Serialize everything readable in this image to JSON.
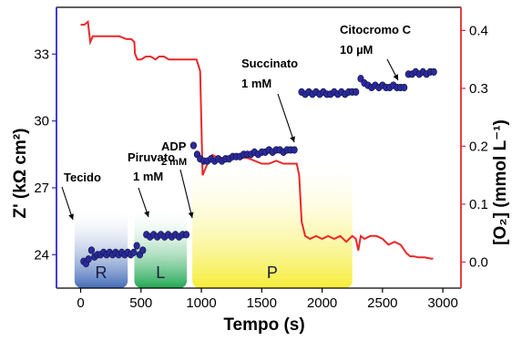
{
  "chart_data": {
    "type": "line",
    "xlabel": "Tempo (s)",
    "ylabel_left": "Z' (kΩ cm²)",
    "ylabel_right": "[O₂] (mmol L⁻¹)",
    "xlim": [
      -200,
      3150
    ],
    "ylim_left": [
      22.5,
      35.1
    ],
    "ylim_right": [
      -0.045,
      0.44
    ],
    "x_ticks": [
      0,
      500,
      1000,
      1500,
      2000,
      2500,
      3000
    ],
    "y_left_ticks": [
      24,
      27,
      30,
      33
    ],
    "y_right_ticks": [
      0.0,
      0.1,
      0.2,
      0.3,
      0.4
    ],
    "y_right_tick_labels": [
      "0.0",
      "0.1",
      "0.2",
      "0.3",
      "0.4"
    ],
    "grid": false,
    "series": [
      {
        "axis": "left",
        "style": "markers",
        "color": "#2a2a9a",
        "x": [
          25,
          45,
          65,
          90,
          115,
          140,
          165,
          190,
          215,
          240,
          265,
          290,
          315,
          340,
          365,
          390,
          415,
          440,
          465,
          490,
          515,
          545,
          575,
          605,
          635,
          665,
          695,
          725,
          755,
          785,
          815,
          845,
          875,
          935,
          965,
          990,
          1020,
          1050,
          1080,
          1110,
          1140,
          1170,
          1200,
          1230,
          1260,
          1290,
          1320,
          1350,
          1380,
          1410,
          1440,
          1470,
          1500,
          1530,
          1560,
          1590,
          1620,
          1650,
          1680,
          1710,
          1740,
          1770,
          1830,
          1860,
          1890,
          1920,
          1950,
          1980,
          2010,
          2040,
          2070,
          2100,
          2130,
          2160,
          2190,
          2220,
          2250,
          2280,
          2320,
          2350,
          2380,
          2410,
          2440,
          2470,
          2500,
          2530,
          2560,
          2590,
          2620,
          2650,
          2680,
          2715,
          2745,
          2775,
          2805,
          2835,
          2865,
          2895,
          2925
        ],
        "values": [
          23.7,
          23.6,
          23.8,
          24.2,
          23.9,
          24.0,
          24.0,
          24.1,
          24.0,
          24.1,
          24.0,
          24.1,
          24.0,
          24.1,
          24.0,
          24.1,
          24.0,
          24.1,
          24.4,
          24.0,
          24.2,
          24.9,
          24.8,
          24.9,
          24.8,
          24.9,
          24.8,
          24.9,
          24.8,
          24.9,
          24.8,
          24.9,
          24.9,
          28.9,
          28.5,
          28.3,
          28.2,
          28.2,
          28.3,
          28.2,
          28.3,
          28.2,
          28.3,
          28.3,
          28.4,
          28.4,
          28.4,
          28.5,
          28.5,
          28.5,
          28.6,
          28.5,
          28.6,
          28.6,
          28.7,
          28.6,
          28.7,
          28.7,
          28.6,
          28.7,
          28.7,
          28.7,
          31.3,
          31.2,
          31.3,
          31.2,
          31.3,
          31.2,
          31.3,
          31.2,
          31.2,
          31.3,
          31.2,
          31.3,
          31.2,
          31.3,
          31.3,
          31.3,
          31.9,
          31.7,
          31.6,
          31.5,
          31.6,
          31.5,
          31.6,
          31.5,
          31.5,
          31.6,
          31.5,
          31.5,
          31.5,
          32.1,
          32.1,
          32.2,
          32.1,
          32.2,
          32.1,
          32.2,
          32.2
        ]
      },
      {
        "axis": "right",
        "style": "line",
        "color": "#e8282a",
        "x": [
          0,
          30,
          60,
          80,
          100,
          130,
          180,
          250,
          320,
          380,
          420,
          445,
          450,
          470,
          500,
          540,
          580,
          620,
          650,
          690,
          730,
          780,
          830,
          880,
          930,
          960,
          990,
          1010,
          1050,
          1090,
          1140,
          1200,
          1260,
          1320,
          1380,
          1440,
          1500,
          1560,
          1620,
          1680,
          1740,
          1790,
          1800,
          1810,
          1830,
          1860,
          1900,
          1950,
          2000,
          2050,
          2100,
          2150,
          2200,
          2250,
          2280,
          2300,
          2320,
          2350,
          2400,
          2450,
          2500,
          2550,
          2600,
          2650,
          2700,
          2730,
          2760,
          2800,
          2850,
          2900,
          2920
        ],
        "values": [
          0.41,
          0.41,
          0.415,
          0.38,
          0.39,
          0.39,
          0.39,
          0.39,
          0.39,
          0.385,
          0.385,
          0.38,
          0.36,
          0.35,
          0.35,
          0.355,
          0.355,
          0.35,
          0.355,
          0.355,
          0.35,
          0.35,
          0.35,
          0.35,
          0.35,
          0.35,
          0.33,
          0.15,
          0.17,
          0.185,
          0.18,
          0.18,
          0.185,
          0.18,
          0.18,
          0.175,
          0.17,
          0.17,
          0.175,
          0.17,
          0.17,
          0.17,
          0.16,
          0.15,
          0.07,
          0.045,
          0.04,
          0.045,
          0.04,
          0.045,
          0.04,
          0.045,
          0.035,
          0.045,
          0.04,
          0.02,
          0.045,
          0.04,
          0.045,
          0.045,
          0.04,
          0.03,
          0.035,
          0.03,
          0.015,
          0.01,
          0.01,
          0.008,
          0.008,
          0.006,
          0.006
        ]
      }
    ],
    "phases": [
      {
        "label": "R",
        "x_start": -50,
        "x_end": 390,
        "color_top": "#ffffff",
        "color_bottom": "#3b64b4"
      },
      {
        "label": "L",
        "x_start": 445,
        "x_end": 880,
        "color_top": "#ffffff",
        "color_bottom": "#16a34a"
      },
      {
        "label": "P",
        "x_start": 925,
        "x_end": 2250,
        "color_top": "#ffffff",
        "color_bottom": "#f5ec2e"
      }
    ],
    "annotations": [
      {
        "id": "tecido",
        "lines": [
          "Tecido"
        ],
        "small": []
      },
      {
        "id": "piruvato",
        "lines": [
          "Piruvato",
          "1 mM"
        ],
        "small": []
      },
      {
        "id": "adp",
        "lines": [
          "ADP"
        ],
        "small": [
          "2 mM"
        ]
      },
      {
        "id": "succinato",
        "lines": [
          "Succinato",
          "1 mM"
        ],
        "small": []
      },
      {
        "id": "citocromo",
        "lines": [
          "Citocromo C",
          "10 µM"
        ],
        "small": []
      }
    ]
  }
}
